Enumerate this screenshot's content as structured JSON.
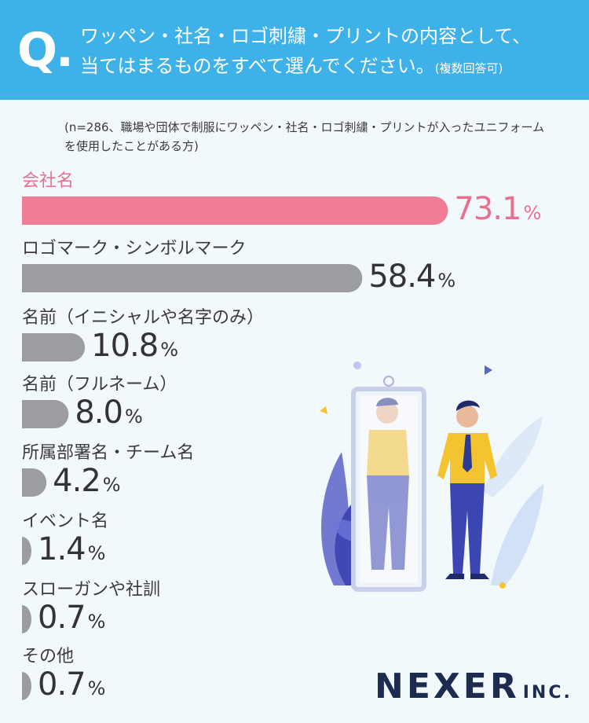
{
  "question": {
    "mark": "Q.",
    "line1": "ワッペン・社名・ロゴ刺繍・プリントの内容として、",
    "line2": "当てはまるものをすべて選んでください。",
    "note": "(複数回答可)"
  },
  "sample_note": "(n=286、職場や団体で制服にワッペン・社名・ロゴ刺繍・プリントが入ったユニフォームを使用したことがある方)",
  "chart_data": {
    "type": "bar",
    "orientation": "horizontal",
    "categories": [
      "会社名",
      "ロゴマーク・シンボルマーク",
      "名前（イニシャルや名字のみ）",
      "名前（フルネーム）",
      "所属部署名・チーム名",
      "イベント名",
      "スローガンや社訓",
      "その他"
    ],
    "values": [
      73.1,
      58.4,
      10.8,
      8.0,
      4.2,
      1.4,
      0.7,
      0.7
    ],
    "value_labels": [
      "73.1",
      "58.4",
      "10.8",
      "8.0",
      "4.2",
      "1.4",
      "0.7",
      "0.7"
    ],
    "unit": "%",
    "highlight_index": 0,
    "colors": {
      "highlight": "#f07b95",
      "bar": "#9c9da1",
      "highlight_text": "#ea6f8f",
      "text": "#333333"
    }
  },
  "logo": {
    "main": "NEXER",
    "sub": "INC."
  },
  "colors": {
    "header": "#3fb1e9",
    "background": "#f2f9fd",
    "logo": "#1d2b4f"
  }
}
